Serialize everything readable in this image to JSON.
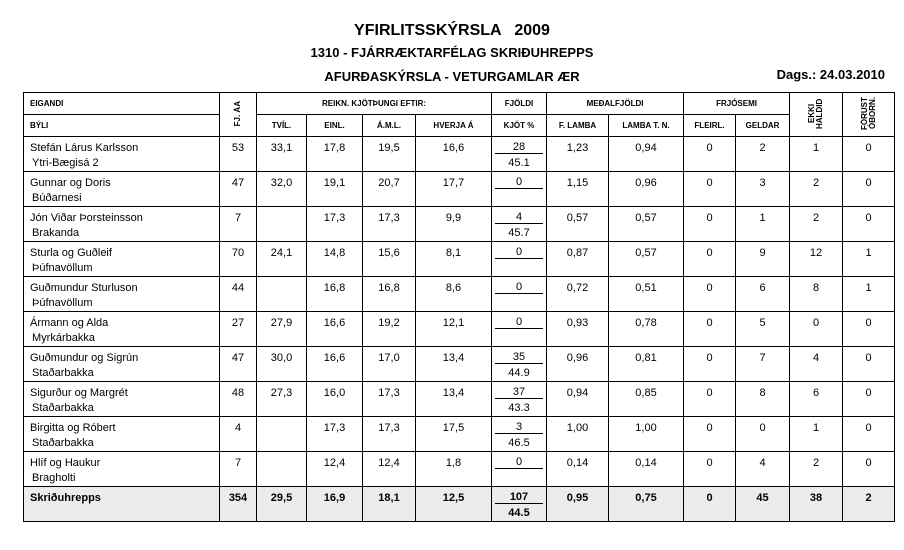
{
  "header": {
    "title": "YFIRLITSSKÝRSLA   2009",
    "subtitle": "1310 - FJÁRRÆKTARFÉLAG SKRIÐUHREPPS",
    "report_name": "AFURÐASKÝRSLA - VETURGAMLAR ÆR",
    "date": "Dags.: 24.03.2010"
  },
  "columns": {
    "eigandi": "EIGANDI",
    "byli": "BÝLI",
    "fj_aa": "FJ. ÁA",
    "reikn": "REIKN. KJÖTÞUNGI EFTIR:",
    "tvil": "TVÍL.",
    "einl": "EINL.",
    "aml": "Á.M.L.",
    "hverja": "HVERJA Á",
    "fjoldi": "FJÖLDI",
    "kjot": "KJÖT %",
    "medal": "MEÐALFJÖLDI",
    "flamba": "F. LAMBA",
    "lambatn": "LAMBA T. N.",
    "frjosemi": "FRJÓSEMI",
    "fleirl": "FLEIRL.",
    "geldar": "GELDAR",
    "ekki": "EKKI HALDID",
    "forust": "FÓRUST ÓBORN."
  },
  "rows": [
    {
      "name": "Stefán Lárus Karlsson",
      "farm": "Ytri-Bægisá 2",
      "fj": "53",
      "tvil": "33,1",
      "einl": "17,8",
      "aml": "19,5",
      "hverja": "16,6",
      "fjoldi": "28",
      "kjot": "45.1",
      "flamba": "1,23",
      "lambatn": "0,94",
      "fleirl": "0",
      "geldar": "2",
      "ekki": "1",
      "forust": "0"
    },
    {
      "name": "Gunnar og Doris",
      "farm": "Búðarnesi",
      "fj": "47",
      "tvil": "32,0",
      "einl": "19,1",
      "aml": "20,7",
      "hverja": "17,7",
      "fjoldi": "0",
      "kjot": "",
      "flamba": "1,15",
      "lambatn": "0,96",
      "fleirl": "0",
      "geldar": "3",
      "ekki": "2",
      "forust": "0"
    },
    {
      "name": "Jón Viðar Þorsteinsson",
      "farm": "Brakanda",
      "fj": "7",
      "tvil": "",
      "einl": "17,3",
      "aml": "17,3",
      "hverja": "9,9",
      "fjoldi": "4",
      "kjot": "45.7",
      "flamba": "0,57",
      "lambatn": "0,57",
      "fleirl": "0",
      "geldar": "1",
      "ekki": "2",
      "forust": "0"
    },
    {
      "name": "Sturla og Guðleif",
      "farm": "Þúfnavöllum",
      "fj": "70",
      "tvil": "24,1",
      "einl": "14,8",
      "aml": "15,6",
      "hverja": "8,1",
      "fjoldi": "0",
      "kjot": "",
      "flamba": "0,87",
      "lambatn": "0,57",
      "fleirl": "0",
      "geldar": "9",
      "ekki": "12",
      "forust": "1"
    },
    {
      "name": "Guðmundur Sturluson",
      "farm": "Þúfnavöllum",
      "fj": "44",
      "tvil": "",
      "einl": "16,8",
      "aml": "16,8",
      "hverja": "8,6",
      "fjoldi": "0",
      "kjot": "",
      "flamba": "0,72",
      "lambatn": "0,51",
      "fleirl": "0",
      "geldar": "6",
      "ekki": "8",
      "forust": "1"
    },
    {
      "name": "Ármann og Alda",
      "farm": "Myrkárbakka",
      "fj": "27",
      "tvil": "27,9",
      "einl": "16,6",
      "aml": "19,2",
      "hverja": "12,1",
      "fjoldi": "0",
      "kjot": "",
      "flamba": "0,93",
      "lambatn": "0,78",
      "fleirl": "0",
      "geldar": "5",
      "ekki": "0",
      "forust": "0"
    },
    {
      "name": "Guðmundur og Sigrún",
      "farm": "Staðarbakka",
      "fj": "47",
      "tvil": "30,0",
      "einl": "16,6",
      "aml": "17,0",
      "hverja": "13,4",
      "fjoldi": "35",
      "kjot": "44.9",
      "flamba": "0,96",
      "lambatn": "0,81",
      "fleirl": "0",
      "geldar": "7",
      "ekki": "4",
      "forust": "0"
    },
    {
      "name": "Sigurður og Margrét",
      "farm": "Staðarbakka",
      "fj": "48",
      "tvil": "27,3",
      "einl": "16,0",
      "aml": "17,3",
      "hverja": "13,4",
      "fjoldi": "37",
      "kjot": "43.3",
      "flamba": "0,94",
      "lambatn": "0,85",
      "fleirl": "0",
      "geldar": "8",
      "ekki": "6",
      "forust": "0"
    },
    {
      "name": "Birgitta og Róbert",
      "farm": "Staðarbakka",
      "fj": "4",
      "tvil": "",
      "einl": "17,3",
      "aml": "17,3",
      "hverja": "17,5",
      "fjoldi": "3",
      "kjot": "46.5",
      "flamba": "1,00",
      "lambatn": "1,00",
      "fleirl": "0",
      "geldar": "0",
      "ekki": "1",
      "forust": "0"
    },
    {
      "name": "Hlíf og Haukur",
      "farm": "Bragholti",
      "fj": "7",
      "tvil": "",
      "einl": "12,4",
      "aml": "12,4",
      "hverja": "1,8",
      "fjoldi": "0",
      "kjot": "",
      "flamba": "0,14",
      "lambatn": "0,14",
      "fleirl": "0",
      "geldar": "4",
      "ekki": "2",
      "forust": "0"
    }
  ],
  "total": {
    "name": "Skriðuhrepps",
    "fj": "354",
    "tvil": "29,5",
    "einl": "16,9",
    "aml": "18,1",
    "hverja": "12,5",
    "fjoldi": "107",
    "kjot": "44.5",
    "flamba": "0,95",
    "lambatn": "0,75",
    "fleirl": "0",
    "geldar": "45",
    "ekki": "38",
    "forust": "2"
  }
}
